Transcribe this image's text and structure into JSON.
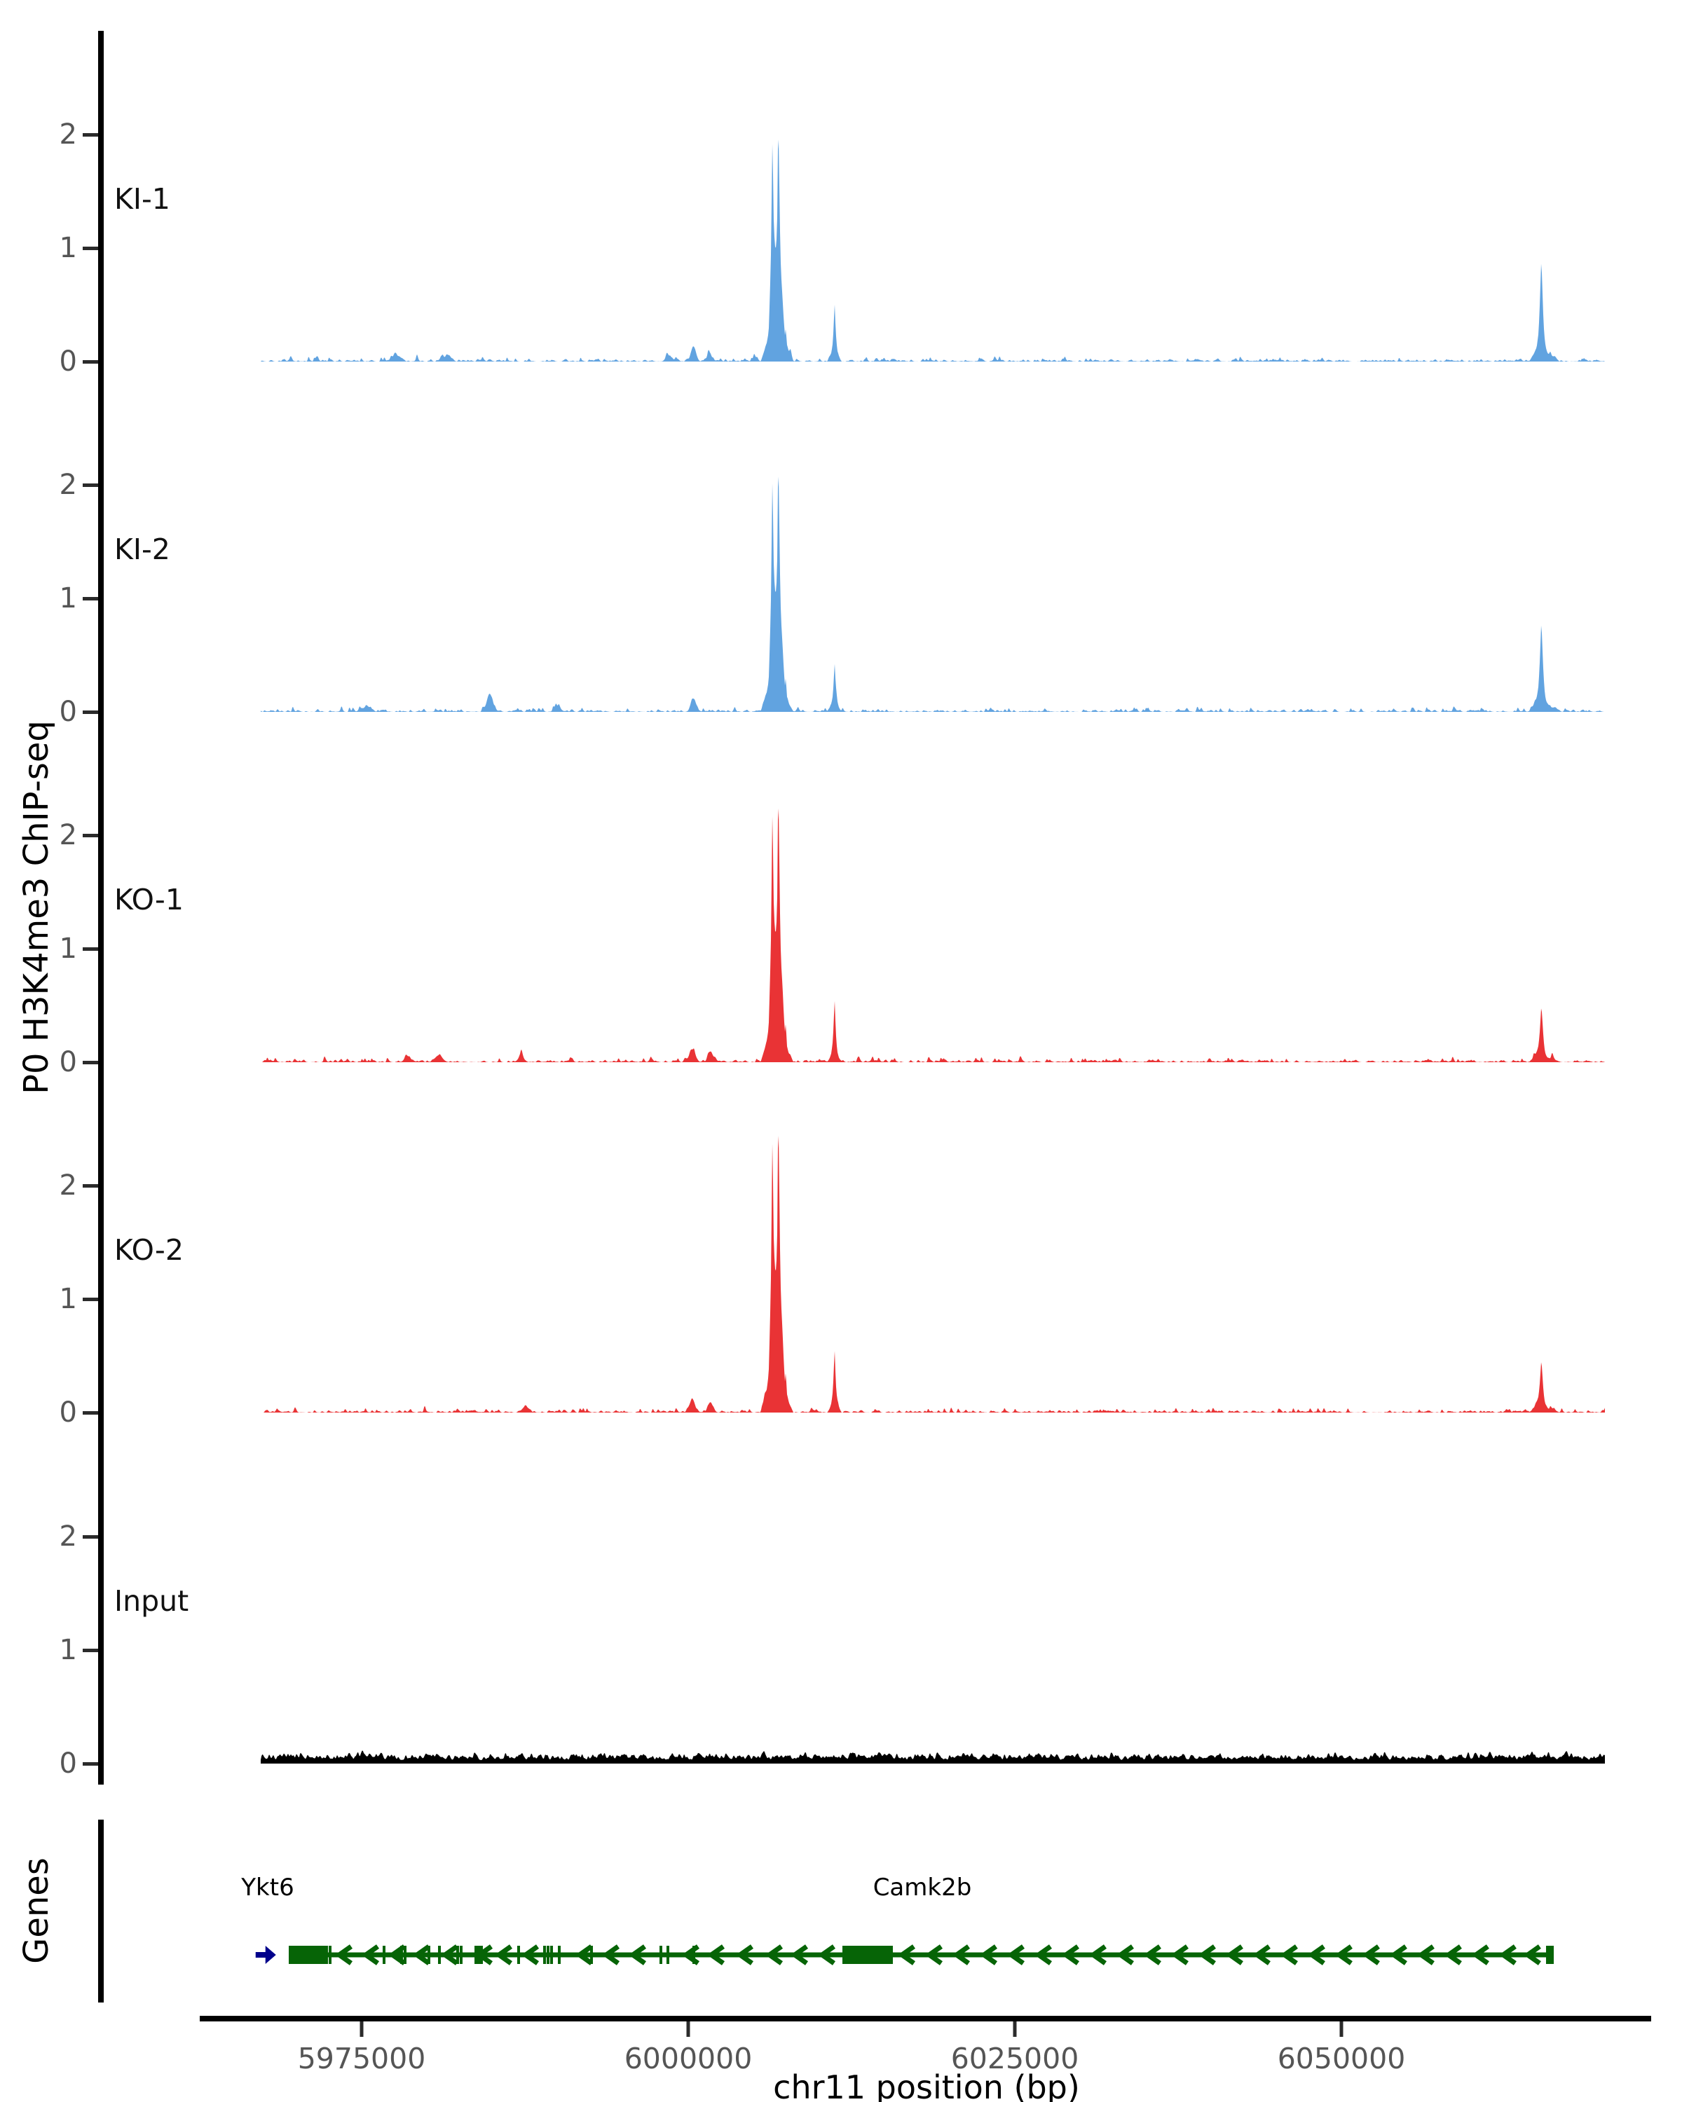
{
  "figure_type": "genome-browser-coverage-plot",
  "chart_data": {
    "type": "area",
    "title": "",
    "xlabel": "chr11 position (bp)",
    "ylabel": "P0 H3K4me3 ChIP-seq",
    "genes_track_label": "Genes",
    "region": {
      "chromosome": "chr11",
      "start_bp": 5967275,
      "end_bp": 6070171
    },
    "x_ticks": [
      {
        "bp": 5975000,
        "label": "5975000"
      },
      {
        "bp": 6000000,
        "label": "6000000"
      },
      {
        "bp": 6025000,
        "label": "6025000"
      },
      {
        "bp": 6050000,
        "label": "6050000"
      }
    ],
    "y_tick_labels": [
      "0",
      "1",
      "2"
    ],
    "y_ticks": [
      0,
      1,
      2
    ],
    "ylim": [
      0,
      2.9
    ],
    "grid": false,
    "legend": "track labels at left of each panel",
    "tracks": [
      {
        "label": "KI-1",
        "color": "#61A3E0",
        "seed": 11,
        "peaks": [
          {
            "center_bp": 6006800,
            "height": 2.15,
            "profile": "main"
          },
          {
            "center_bp": 6011200,
            "height": 0.53,
            "profile": "narrow"
          },
          {
            "center_bp": 6065300,
            "height": 0.88,
            "profile": "tss"
          }
        ],
        "bumps": [
          [
            6000400,
            0.13,
            260
          ],
          [
            5977600,
            0.05,
            400
          ],
          [
            5981600,
            0.05,
            350
          ],
          [
            6001600,
            0.06,
            250
          ],
          [
            5998500,
            0.04,
            300
          ]
        ]
      },
      {
        "label": "KI-2",
        "color": "#61A3E0",
        "seed": 22,
        "peaks": [
          {
            "center_bp": 6006800,
            "height": 2.27,
            "profile": "main"
          },
          {
            "center_bp": 6011200,
            "height": 0.45,
            "profile": "narrow"
          },
          {
            "center_bp": 6065300,
            "height": 0.79,
            "profile": "tss"
          }
        ],
        "bumps": [
          [
            5984800,
            0.16,
            300
          ],
          [
            6000400,
            0.11,
            280
          ],
          [
            5975400,
            0.05,
            350
          ],
          [
            5990000,
            0.04,
            300
          ]
        ]
      },
      {
        "label": "KO-1",
        "color": "#E93335",
        "seed": 33,
        "peaks": [
          {
            "center_bp": 6006800,
            "height": 2.46,
            "profile": "main"
          },
          {
            "center_bp": 6011200,
            "height": 0.56,
            "profile": "narrow"
          },
          {
            "center_bp": 6065300,
            "height": 0.48,
            "profile": "tss"
          }
        ],
        "bumps": [
          [
            6000300,
            0.11,
            300
          ],
          [
            6001700,
            0.09,
            250
          ],
          [
            5980900,
            0.06,
            400
          ],
          [
            5987200,
            0.05,
            300
          ],
          [
            5978500,
            0.05,
            300
          ]
        ]
      },
      {
        "label": "KO-2",
        "color": "#E93335",
        "seed": 44,
        "peaks": [
          {
            "center_bp": 6006800,
            "height": 2.68,
            "profile": "main"
          },
          {
            "center_bp": 6011200,
            "height": 0.57,
            "profile": "narrow"
          },
          {
            "center_bp": 6065300,
            "height": 0.46,
            "profile": "tss"
          }
        ],
        "bumps": [
          [
            6000300,
            0.11,
            300
          ],
          [
            6001700,
            0.09,
            250
          ],
          [
            5987500,
            0.05,
            300
          ]
        ]
      },
      {
        "label": "Input",
        "color": "#000000",
        "seed": 55,
        "style": "continuous-noise",
        "noise_max": 0.17,
        "peaks": [],
        "bumps": []
      }
    ],
    "peak_profiles": {
      "main": [
        [
          -1250,
          0
        ],
        [
          -1000,
          0.04
        ],
        [
          -800,
          0.07
        ],
        [
          -640,
          0.12
        ],
        [
          -540,
          0.28
        ],
        [
          -460,
          0.45
        ],
        [
          -400,
          0.72
        ],
        [
          -350,
          0.93
        ],
        [
          -320,
          0.7
        ],
        [
          -290,
          0.85
        ],
        [
          -260,
          0.58
        ],
        [
          -220,
          0.52
        ],
        [
          -160,
          0.47
        ],
        [
          -100,
          0.46
        ],
        [
          -40,
          0.5
        ],
        [
          20,
          0.6
        ],
        [
          90,
          1.0
        ],
        [
          150,
          0.82
        ],
        [
          210,
          0.58
        ],
        [
          270,
          0.42
        ],
        [
          330,
          0.34
        ],
        [
          420,
          0.26
        ],
        [
          520,
          0.16
        ],
        [
          600,
          0.1
        ],
        [
          680,
          0.14
        ],
        [
          740,
          0.06
        ],
        [
          900,
          0.03
        ],
        [
          1100,
          0.015
        ],
        [
          1250,
          0
        ]
      ],
      "narrow": [
        [
          -550,
          0
        ],
        [
          -380,
          0.06
        ],
        [
          -240,
          0.14
        ],
        [
          -140,
          0.3
        ],
        [
          -70,
          0.55
        ],
        [
          -20,
          0.85
        ],
        [
          0,
          1
        ],
        [
          30,
          0.85
        ],
        [
          80,
          0.55
        ],
        [
          140,
          0.32
        ],
        [
          220,
          0.16
        ],
        [
          320,
          0.08
        ],
        [
          450,
          0.03
        ],
        [
          550,
          0
        ]
      ],
      "tss": [
        [
          -900,
          0
        ],
        [
          -700,
          0.05
        ],
        [
          -500,
          0.09
        ],
        [
          -350,
          0.14
        ],
        [
          -230,
          0.25
        ],
        [
          -140,
          0.45
        ],
        [
          -70,
          0.72
        ],
        [
          0,
          1
        ],
        [
          50,
          0.86
        ],
        [
          110,
          0.62
        ],
        [
          170,
          0.4
        ],
        [
          240,
          0.24
        ],
        [
          330,
          0.14
        ],
        [
          450,
          0.09
        ],
        [
          600,
          0.06
        ],
        [
          800,
          0.045
        ],
        [
          1000,
          0.05
        ],
        [
          1150,
          0.03
        ],
        [
          1400,
          0
        ]
      ]
    },
    "genes": [
      {
        "name": "Ykt6",
        "strand": "+",
        "color": "#00008B",
        "glyph": "arrow-right",
        "start_bp": 5967100,
        "end_bp": 5968350
      },
      {
        "name": "Camk2b",
        "strand": "-",
        "color": "#066406",
        "start_bp": 5969421,
        "end_bp": 6066255,
        "exon_boxes_bp": [
          [
            5969421,
            5972049
          ],
          [
            5983638,
            5984281
          ],
          [
            6011803,
            6015665
          ],
          [
            6065665,
            6066255
          ]
        ],
        "exon_ticks_bp": [
          5972103,
          5972318,
          5972586,
          5976717,
          5978058,
          5978326,
          5980150,
          5980955,
          5982350,
          5982618,
          5987017,
          5989002,
          5989270,
          5989539,
          5990129,
          5992597,
          5997908,
          5998444,
          6000429
        ],
        "direction_marks_bp": [
          5973712,
          5975751,
          5977790,
          5979668,
          5981813,
          5984442,
          5985944,
          5987983,
          5992114,
          5994152,
          5996191,
          6000268,
          6002200,
          6004399,
          6006652,
          6008584,
          6010676,
          6016792,
          6018884,
          6020976,
          6023068,
          6025160,
          6027252,
          6029344,
          6031436,
          6033528,
          6035620,
          6037712,
          6039804,
          6041896,
          6043988,
          6046080,
          6048172,
          6050264,
          6052356,
          6054448,
          6056540,
          6058632,
          6060724,
          6062816,
          6064693
        ]
      }
    ]
  }
}
